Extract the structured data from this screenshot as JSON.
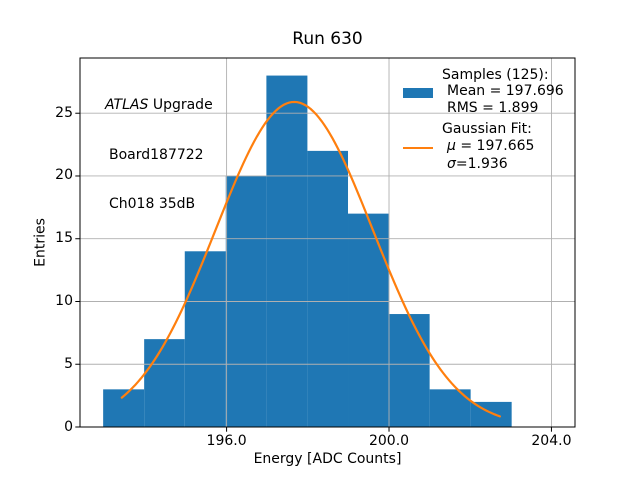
{
  "chart_data": {
    "type": "bar",
    "subtype": "histogram",
    "title": "Run 630",
    "xlabel": "Energy [ADC Counts]",
    "ylabel": "Entries",
    "bin_edges": [
      192.96,
      193.97,
      194.97,
      195.98,
      196.98,
      197.99,
      198.99,
      199.99,
      201.0,
      202.01,
      203.02
    ],
    "counts": [
      3,
      7,
      14,
      20,
      28,
      22,
      17,
      9,
      3,
      2
    ],
    "total_samples": 125,
    "mean": 197.696,
    "rms": 1.899,
    "gaussian_fit": {
      "mu": 197.665,
      "sigma": 1.936,
      "amplitude": 25.9,
      "curve_x_start": 193.42,
      "curve_x_end": 202.73
    },
    "xlim": [
      192.39,
      204.58
    ],
    "ylim": [
      0,
      29.4
    ],
    "x_ticks": [
      {
        "value": 196.0,
        "label": "196.0"
      },
      {
        "value": 200.0,
        "label": "200.0"
      },
      {
        "value": 204.0,
        "label": "204.0"
      }
    ],
    "y_ticks": [
      {
        "value": 0,
        "label": "0"
      },
      {
        "value": 5,
        "label": "5"
      },
      {
        "value": 10,
        "label": "10"
      },
      {
        "value": 15,
        "label": "15"
      },
      {
        "value": 20,
        "label": "20"
      },
      {
        "value": 25,
        "label": "25"
      }
    ],
    "grid": true,
    "legend_position": "upper right",
    "colors": {
      "bar": "#1f77b4",
      "fit_line": "#ff7f0e",
      "grid": "#b0b0b0",
      "spine": "#000000",
      "text": "#000000",
      "background": "#ffffff"
    }
  },
  "annotation": {
    "experiment": "ATLAS",
    "experiment_suffix": " Upgrade",
    "board": "Board187722",
    "channel": "Ch018 35dB"
  },
  "legend": {
    "samples_header": "Samples (125):",
    "mean_label": "Mean = 197.696",
    "rms_label": "RMS = 1.899",
    "fit_header": "Gaussian Fit:",
    "mu_symbol": "μ",
    "mu_value": " = 197.665",
    "sigma_symbol": "σ",
    "sigma_value": "=1.936"
  }
}
